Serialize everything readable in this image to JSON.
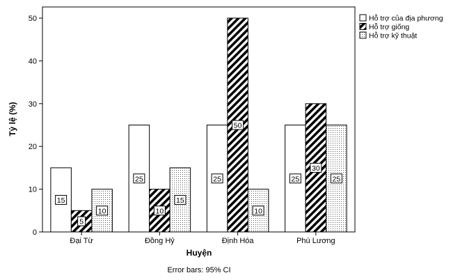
{
  "chart_data": {
    "type": "bar",
    "categories": [
      "Đại Từ",
      "Đồng Hỷ",
      "Định Hóa",
      "Phú Lương"
    ],
    "series": [
      {
        "name": "Hỗ trợ của địa phương",
        "values": [
          15,
          25,
          25,
          25
        ],
        "pattern": "none"
      },
      {
        "name": "Hỗ trợ giống",
        "values": [
          5,
          10,
          50,
          30
        ],
        "pattern": "diagonal-hatch"
      },
      {
        "name": "Hỗ trợ kỹ thuật",
        "values": [
          10,
          15,
          10,
          25
        ],
        "pattern": "dots"
      }
    ],
    "xlabel": "Huyện",
    "ylabel": "Tỷ lệ (%)",
    "ylim": [
      0,
      52
    ],
    "yticks": [
      0,
      10,
      20,
      30,
      40,
      50
    ],
    "grid": false,
    "legend_position": "top-right",
    "footnote": "Error bars: 95% CI",
    "colors": {
      "bar_fill": "#ffffff",
      "bar_stroke": "#000000",
      "hatch": "#000000"
    }
  }
}
